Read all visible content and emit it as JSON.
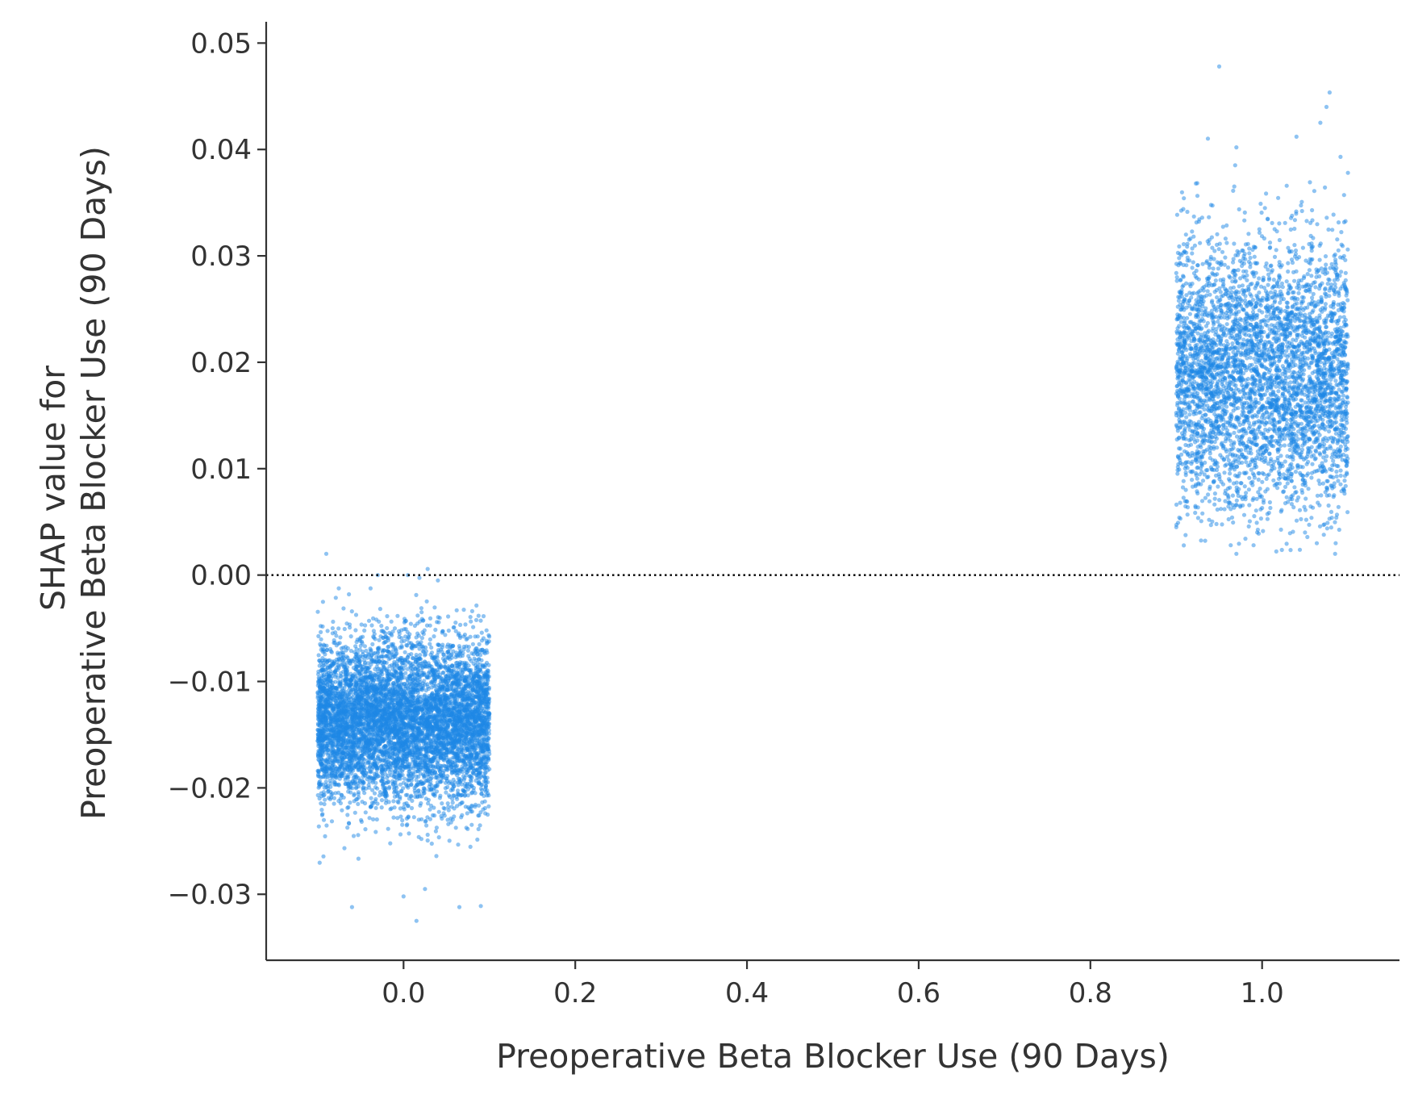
{
  "chart_data": {
    "type": "scatter",
    "title": "",
    "xlabel": "Preoperative Beta Blocker Use (90 Days)",
    "ylabel_lines": [
      "SHAP value for",
      "Preoperative Beta Blocker Use (90 Days)"
    ],
    "xlim": [
      -0.16,
      1.16
    ],
    "ylim": [
      -0.0362,
      0.052
    ],
    "x_ticks": [
      {
        "value": 0.0,
        "label": "0.0"
      },
      {
        "value": 0.2,
        "label": "0.2"
      },
      {
        "value": 0.4,
        "label": "0.4"
      },
      {
        "value": 0.6,
        "label": "0.6"
      },
      {
        "value": 0.8,
        "label": "0.8"
      },
      {
        "value": 1.0,
        "label": "1.0"
      }
    ],
    "y_ticks": [
      {
        "value": -0.03,
        "label": "−0.03"
      },
      {
        "value": -0.02,
        "label": "−0.02"
      },
      {
        "value": -0.01,
        "label": "−0.01"
      },
      {
        "value": 0.0,
        "label": "0.00"
      },
      {
        "value": 0.01,
        "label": "0.01"
      },
      {
        "value": 0.02,
        "label": "0.02"
      },
      {
        "value": 0.03,
        "label": "0.03"
      },
      {
        "value": 0.04,
        "label": "0.04"
      },
      {
        "value": 0.05,
        "label": "0.05"
      }
    ],
    "grid": false,
    "reference_line": {
      "y": 0.0,
      "style": "dotted"
    },
    "point_color": "#1e88e5",
    "axis_color": "#333333",
    "clusters": [
      {
        "x_value": 0.0,
        "x_jitter": 0.1,
        "count": 6500,
        "y_center": -0.0138,
        "y_spread": 0.0038,
        "y_min": -0.0325,
        "y_max": 0.002,
        "outliers": [
          {
            "x": -0.09,
            "y": 0.002
          },
          {
            "x": -0.03,
            "y": 0.0
          },
          {
            "x": 0.005,
            "y": 0.0
          },
          {
            "x": 0.04,
            "y": -0.0005
          },
          {
            "x": -0.06,
            "y": -0.0312
          },
          {
            "x": 0.0,
            "y": -0.0302
          },
          {
            "x": 0.015,
            "y": -0.0325
          },
          {
            "x": 0.025,
            "y": -0.0295
          },
          {
            "x": 0.065,
            "y": -0.0312
          },
          {
            "x": 0.09,
            "y": -0.0311
          }
        ]
      },
      {
        "x_value": 1.0,
        "x_jitter": 0.1,
        "count": 4200,
        "y_center": 0.0188,
        "y_spread": 0.0062,
        "y_min": 0.002,
        "y_max": 0.0478,
        "outliers": [
          {
            "x": 0.95,
            "y": 0.0478
          },
          {
            "x": 1.075,
            "y": 0.044
          },
          {
            "x": 1.04,
            "y": 0.0412
          },
          {
            "x": 0.97,
            "y": 0.0402
          },
          {
            "x": 1.1,
            "y": 0.0378
          },
          {
            "x": 0.97,
            "y": 0.002
          },
          {
            "x": 0.99,
            "y": 0.0028
          },
          {
            "x": 1.085,
            "y": 0.002
          },
          {
            "x": 1.05,
            "y": 0.004
          },
          {
            "x": 0.9,
            "y": 0.0045
          }
        ]
      }
    ]
  }
}
